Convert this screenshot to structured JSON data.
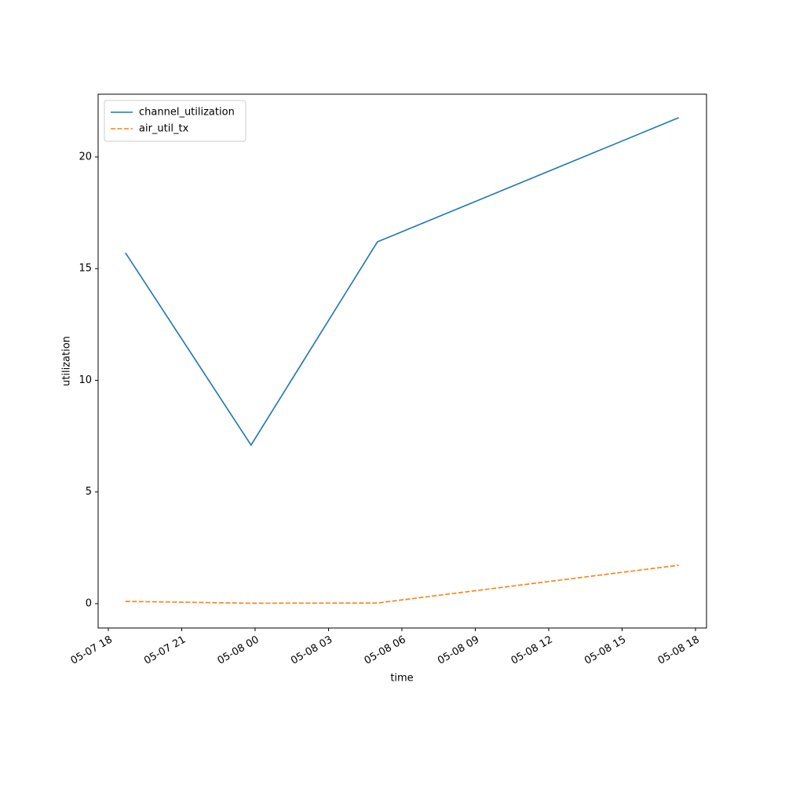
{
  "chart_data": {
    "type": "line",
    "xlabel": "time",
    "ylabel": "utilization",
    "x": [
      "05-07 18:42",
      "05-07 23:50",
      "05-08 05:00",
      "05-08 17:19"
    ],
    "series": [
      {
        "name": "channel_utilization",
        "color": "#1f77b4",
        "linestyle": "solid",
        "values": [
          15.71,
          7.1,
          16.2,
          21.76
        ]
      },
      {
        "name": "air_util_tx",
        "color": "#ff7f0e",
        "linestyle": "dashed",
        "values": [
          0.1,
          0.02,
          0.03,
          1.72
        ]
      }
    ],
    "xlim": [
      "05-07 17:35",
      "05-08 18:27"
    ],
    "xticks": [
      "05-07 18",
      "05-07 21",
      "05-08 00",
      "05-08 03",
      "05-08 06",
      "05-08 09",
      "05-08 12",
      "05-08 15",
      "05-08 18"
    ],
    "ylim": [
      -1.09,
      22.81
    ],
    "yticks": [
      0,
      5,
      10,
      15,
      20
    ],
    "grid": false,
    "legend": "upper left"
  }
}
